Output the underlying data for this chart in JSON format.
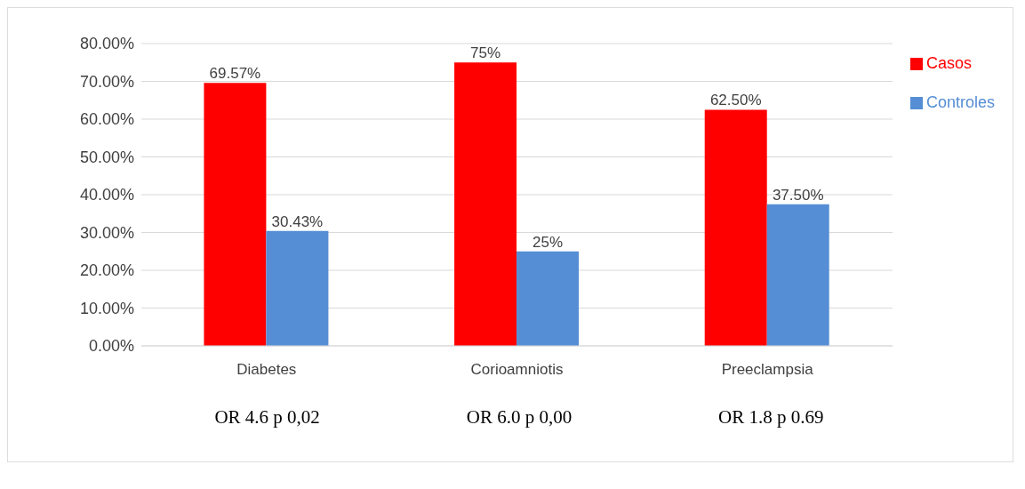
{
  "chart_data": {
    "type": "bar",
    "categories": [
      "Diabetes",
      "Corioamniotis",
      "Preeclampsia"
    ],
    "series": [
      {
        "name": "Casos",
        "color": "#ff0000",
        "values": [
          69.57,
          75,
          62.5
        ],
        "value_labels": [
          "69.57%",
          "75%",
          "62.50%"
        ]
      },
      {
        "name": "Controles",
        "color": "#558ed5",
        "values": [
          30.43,
          25,
          37.5
        ],
        "value_labels": [
          "30.43%",
          "25%",
          "37.50%"
        ]
      }
    ],
    "ylim": [
      0,
      80
    ],
    "yticks": [
      {
        "value": 0,
        "label": "0.00%"
      },
      {
        "value": 10,
        "label": "10.00%"
      },
      {
        "value": 20,
        "label": "20.00%"
      },
      {
        "value": 30,
        "label": "30.00%"
      },
      {
        "value": 40,
        "label": "40.00%"
      },
      {
        "value": 50,
        "label": "50.00%"
      },
      {
        "value": 60,
        "label": "60.00%"
      },
      {
        "value": 70,
        "label": "70.00%"
      },
      {
        "value": 80,
        "label": "80.00%"
      }
    ],
    "grid": "y",
    "legend": "top right",
    "annotations": [
      "OR 4.6 p 0,02",
      "OR 6.0 p 0,00",
      "OR 1.8 p 0.69"
    ]
  }
}
